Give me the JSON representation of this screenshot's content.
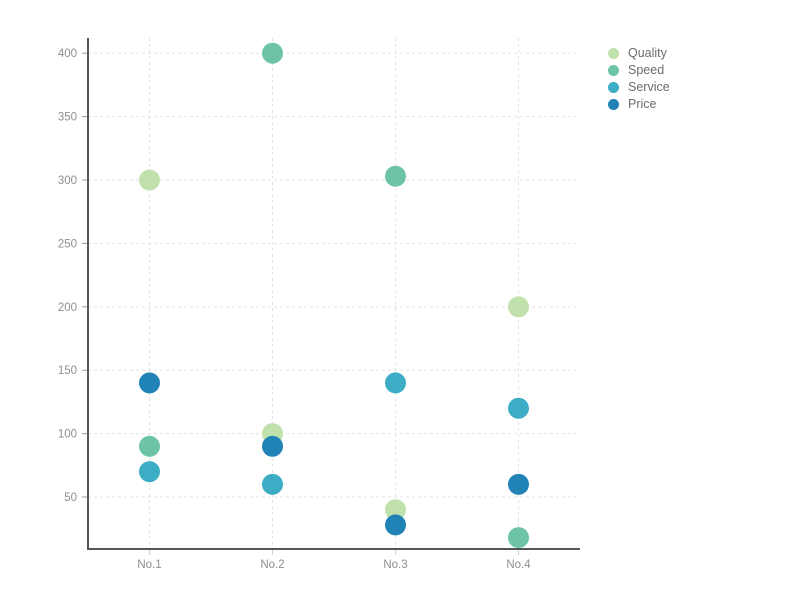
{
  "chart_data": {
    "type": "scatter",
    "title": "",
    "xlabel": "",
    "ylabel": "",
    "categories": [
      "No.1",
      "No.2",
      "No.3",
      "No.4"
    ],
    "series": [
      {
        "name": "Quality",
        "color": "#c1e1ac",
        "values": [
          300,
          100,
          40,
          200
        ]
      },
      {
        "name": "Speed",
        "color": "#6cc4a4",
        "values": [
          90,
          400,
          303,
          18
        ]
      },
      {
        "name": "Service",
        "color": "#3cadc5",
        "values": [
          70,
          60,
          140,
          120
        ]
      },
      {
        "name": "Price",
        "color": "#2183b5",
        "values": [
          140,
          90,
          28,
          60
        ]
      }
    ],
    "yticks": [
      50,
      100,
      150,
      200,
      250,
      300,
      350,
      400
    ],
    "ylim": [
      9,
      412
    ],
    "grid": true,
    "legend_position": "top-right",
    "marker_radius": 10.5,
    "colors": {
      "gridline": "#e3e3e3",
      "axis": "#53575a",
      "tick_label": "#8f8f8f",
      "legend_text": "#6b6b6b",
      "background": "#ffffff"
    }
  }
}
